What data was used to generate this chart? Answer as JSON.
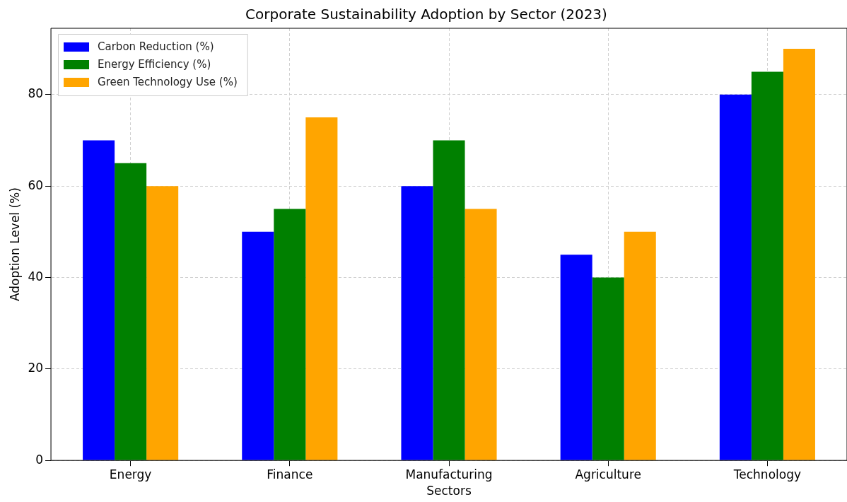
{
  "chart_data": {
    "type": "bar",
    "title": "Corporate Sustainability Adoption by Sector (2023)",
    "xlabel": "Sectors",
    "ylabel": "Adoption Level (%)",
    "categories": [
      "Energy",
      "Finance",
      "Manufacturing",
      "Agriculture",
      "Technology"
    ],
    "series": [
      {
        "name": "Carbon Reduction (%)",
        "color": "#0000ff",
        "values": [
          70,
          50,
          60,
          45,
          80
        ]
      },
      {
        "name": "Energy Efficiency (%)",
        "color": "#008000",
        "values": [
          65,
          55,
          70,
          40,
          85
        ]
      },
      {
        "name": "Green Technology Use (%)",
        "color": "#ffa500",
        "values": [
          60,
          75,
          55,
          50,
          90
        ]
      }
    ],
    "ylim": [
      0,
      94.5
    ],
    "yticks": [
      0,
      20,
      40,
      60,
      80
    ],
    "grid": true,
    "legend": "top left"
  }
}
